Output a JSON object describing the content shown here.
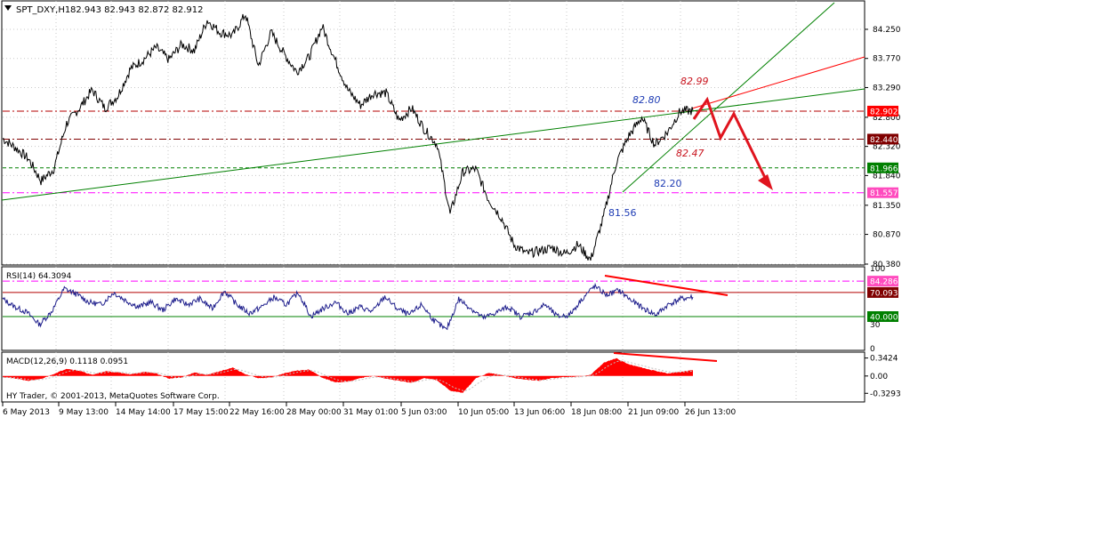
{
  "header": {
    "symbol_line": "SPT_DXY,H1",
    "ohlc": "82.943 82.943 82.872 82.912"
  },
  "colors": {
    "background": "#ffffff",
    "frame": "#000000",
    "grid": "#c8c8c8",
    "price": "#000000",
    "rsi_line": "#1e1e8c",
    "macd_hist": "#ff0000",
    "trend_green": "#008000",
    "trend_red": "#ff0000",
    "arrow_red": "#e0141e",
    "level_red_dash": "#b40000",
    "level_brown_dash": "#800000",
    "level_green_dash": "#008000",
    "level_magenta_dash": "#ff00ff",
    "label_blue": "#1e3cb4",
    "label_red": "#c8141e",
    "tag_red": "#ff0000",
    "tag_brown": "#800000",
    "tag_green": "#008000",
    "tag_magenta": "#ff4bbe"
  },
  "chart_data": [
    {
      "type": "line",
      "panel": "price",
      "series": [
        {
          "name": "SPT_DXY,H1",
          "values": [
            82.45,
            82.3,
            82.12,
            81.75,
            81.95,
            82.7,
            82.95,
            83.25,
            82.95,
            83.15,
            83.6,
            83.75,
            83.95,
            83.75,
            84.0,
            83.9,
            84.4,
            84.2,
            84.15,
            84.5,
            83.65,
            84.2,
            83.85,
            83.55,
            83.8,
            84.3,
            83.75,
            83.25,
            83.0,
            83.2,
            83.2,
            82.75,
            82.95,
            82.6,
            82.35,
            81.2,
            81.9,
            81.95,
            81.45,
            81.15,
            80.7,
            80.55,
            80.6,
            80.65,
            80.55,
            80.7,
            80.45,
            81.15,
            82.05,
            82.5,
            82.8,
            82.35,
            82.55,
            82.9,
            82.91
          ]
        }
      ],
      "xlabels": [
        "6 May 2013",
        "9 May 13:00",
        "14 May 14:00",
        "17 May 15:00",
        "22 May 16:00",
        "28 May 00:00",
        "31 May 01:00",
        "5 Jun 03:00",
        "10 Jun 05:00",
        "13 Jun 06:00",
        "18 Jun 08:00",
        "21 Jun 09:00",
        "26 Jun 13:00"
      ],
      "yticks": [
        "84.250",
        "83.770",
        "83.290",
        "82.800",
        "82.320",
        "81.840",
        "81.350",
        "80.870",
        "80.380"
      ],
      "ylim": [
        80.38,
        84.66
      ],
      "levels": [
        {
          "value": 82.902,
          "tag": "82.902",
          "style": "red_dash"
        },
        {
          "value": 82.44,
          "tag": "82.440",
          "style": "brown_dash"
        },
        {
          "value": 81.966,
          "tag": "81.966",
          "style": "green_dash"
        },
        {
          "value": 81.557,
          "tag": "81.557",
          "style": "magenta_dash"
        }
      ],
      "annotations": [
        "82.80",
        "82.99",
        "82.47",
        "82.20",
        "81.56"
      ]
    },
    {
      "type": "line",
      "panel": "rsi",
      "title": "RSI(14) 64.3094",
      "series": [
        {
          "name": "RSI(14)",
          "values": [
            62,
            52,
            45,
            30,
            47,
            75,
            68,
            58,
            55,
            70,
            60,
            52,
            58,
            48,
            62,
            55,
            62,
            50,
            72,
            55,
            44,
            52,
            64,
            55,
            70,
            40,
            50,
            58,
            44,
            52,
            46,
            65,
            50,
            42,
            55,
            35,
            23,
            62,
            50,
            38,
            45,
            52,
            40,
            45,
            55,
            40,
            42,
            62,
            78,
            67,
            73,
            60,
            50,
            42,
            55,
            62,
            64.3
          ]
        }
      ],
      "ylim": [
        0,
        100
      ],
      "yticks": [
        "100",
        "30",
        "0"
      ],
      "levels": [
        {
          "value": 84.286,
          "tag": "84.286",
          "style": "magenta_dash"
        },
        {
          "value": 70.093,
          "tag": "70.093",
          "style": "red_solid"
        },
        {
          "value": 40.0,
          "tag": "40.000",
          "style": "green_solid"
        }
      ]
    },
    {
      "type": "bar",
      "panel": "macd",
      "title": "MACD(12,26,9) 0.1118 0.0951",
      "series": [
        {
          "name": "MACD",
          "values": [
            -0.02,
            -0.05,
            -0.09,
            -0.06,
            0.04,
            0.14,
            0.1,
            0.02,
            0.09,
            0.07,
            0.03,
            0.08,
            0.05,
            -0.05,
            -0.03,
            0.07,
            0.02,
            0.09,
            0.16,
            0.03,
            -0.04,
            -0.03,
            0.05,
            0.1,
            0.12,
            -0.03,
            -0.12,
            -0.11,
            -0.04,
            0.0,
            -0.05,
            -0.09,
            -0.13,
            -0.04,
            -0.08,
            -0.28,
            -0.32,
            -0.05,
            0.06,
            0.02,
            -0.04,
            -0.07,
            -0.09,
            -0.04,
            -0.02,
            -0.01,
            0.02,
            0.25,
            0.34,
            0.22,
            0.16,
            0.1,
            0.05,
            0.08,
            0.11
          ]
        }
      ],
      "ylim": [
        -0.46,
        0.42
      ],
      "yticks": [
        "0.3424",
        "0.00",
        "-0.3293"
      ]
    }
  ],
  "footer": {
    "copyright": "HY Trader, © 2001-2013, MetaQuotes Software Corp."
  }
}
